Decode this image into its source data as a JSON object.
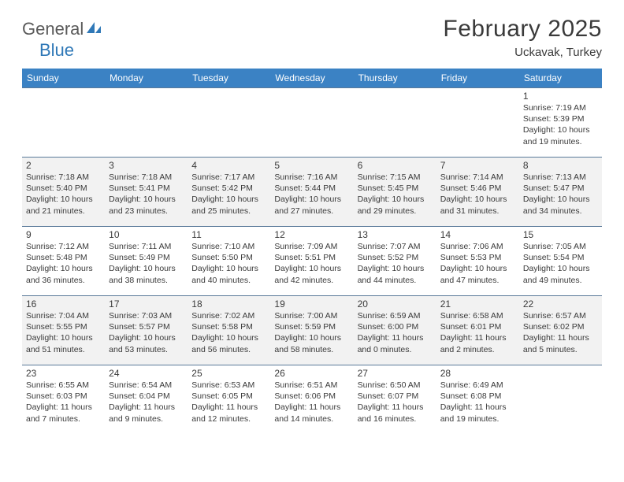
{
  "logo": {
    "word1": "General",
    "word2": "Blue"
  },
  "title": "February 2025",
  "location": "Uckavak, Turkey",
  "header_bg": "#3b82c4",
  "days_of_week": [
    "Sunday",
    "Monday",
    "Tuesday",
    "Wednesday",
    "Thursday",
    "Friday",
    "Saturday"
  ],
  "weeks": [
    [
      null,
      null,
      null,
      null,
      null,
      null,
      {
        "n": "1",
        "sr": "Sunrise: 7:19 AM",
        "ss": "Sunset: 5:39 PM",
        "dl": "Daylight: 10 hours and 19 minutes."
      }
    ],
    [
      {
        "n": "2",
        "sr": "Sunrise: 7:18 AM",
        "ss": "Sunset: 5:40 PM",
        "dl": "Daylight: 10 hours and 21 minutes."
      },
      {
        "n": "3",
        "sr": "Sunrise: 7:18 AM",
        "ss": "Sunset: 5:41 PM",
        "dl": "Daylight: 10 hours and 23 minutes."
      },
      {
        "n": "4",
        "sr": "Sunrise: 7:17 AM",
        "ss": "Sunset: 5:42 PM",
        "dl": "Daylight: 10 hours and 25 minutes."
      },
      {
        "n": "5",
        "sr": "Sunrise: 7:16 AM",
        "ss": "Sunset: 5:44 PM",
        "dl": "Daylight: 10 hours and 27 minutes."
      },
      {
        "n": "6",
        "sr": "Sunrise: 7:15 AM",
        "ss": "Sunset: 5:45 PM",
        "dl": "Daylight: 10 hours and 29 minutes."
      },
      {
        "n": "7",
        "sr": "Sunrise: 7:14 AM",
        "ss": "Sunset: 5:46 PM",
        "dl": "Daylight: 10 hours and 31 minutes."
      },
      {
        "n": "8",
        "sr": "Sunrise: 7:13 AM",
        "ss": "Sunset: 5:47 PM",
        "dl": "Daylight: 10 hours and 34 minutes."
      }
    ],
    [
      {
        "n": "9",
        "sr": "Sunrise: 7:12 AM",
        "ss": "Sunset: 5:48 PM",
        "dl": "Daylight: 10 hours and 36 minutes."
      },
      {
        "n": "10",
        "sr": "Sunrise: 7:11 AM",
        "ss": "Sunset: 5:49 PM",
        "dl": "Daylight: 10 hours and 38 minutes."
      },
      {
        "n": "11",
        "sr": "Sunrise: 7:10 AM",
        "ss": "Sunset: 5:50 PM",
        "dl": "Daylight: 10 hours and 40 minutes."
      },
      {
        "n": "12",
        "sr": "Sunrise: 7:09 AM",
        "ss": "Sunset: 5:51 PM",
        "dl": "Daylight: 10 hours and 42 minutes."
      },
      {
        "n": "13",
        "sr": "Sunrise: 7:07 AM",
        "ss": "Sunset: 5:52 PM",
        "dl": "Daylight: 10 hours and 44 minutes."
      },
      {
        "n": "14",
        "sr": "Sunrise: 7:06 AM",
        "ss": "Sunset: 5:53 PM",
        "dl": "Daylight: 10 hours and 47 minutes."
      },
      {
        "n": "15",
        "sr": "Sunrise: 7:05 AM",
        "ss": "Sunset: 5:54 PM",
        "dl": "Daylight: 10 hours and 49 minutes."
      }
    ],
    [
      {
        "n": "16",
        "sr": "Sunrise: 7:04 AM",
        "ss": "Sunset: 5:55 PM",
        "dl": "Daylight: 10 hours and 51 minutes."
      },
      {
        "n": "17",
        "sr": "Sunrise: 7:03 AM",
        "ss": "Sunset: 5:57 PM",
        "dl": "Daylight: 10 hours and 53 minutes."
      },
      {
        "n": "18",
        "sr": "Sunrise: 7:02 AM",
        "ss": "Sunset: 5:58 PM",
        "dl": "Daylight: 10 hours and 56 minutes."
      },
      {
        "n": "19",
        "sr": "Sunrise: 7:00 AM",
        "ss": "Sunset: 5:59 PM",
        "dl": "Daylight: 10 hours and 58 minutes."
      },
      {
        "n": "20",
        "sr": "Sunrise: 6:59 AM",
        "ss": "Sunset: 6:00 PM",
        "dl": "Daylight: 11 hours and 0 minutes."
      },
      {
        "n": "21",
        "sr": "Sunrise: 6:58 AM",
        "ss": "Sunset: 6:01 PM",
        "dl": "Daylight: 11 hours and 2 minutes."
      },
      {
        "n": "22",
        "sr": "Sunrise: 6:57 AM",
        "ss": "Sunset: 6:02 PM",
        "dl": "Daylight: 11 hours and 5 minutes."
      }
    ],
    [
      {
        "n": "23",
        "sr": "Sunrise: 6:55 AM",
        "ss": "Sunset: 6:03 PM",
        "dl": "Daylight: 11 hours and 7 minutes."
      },
      {
        "n": "24",
        "sr": "Sunrise: 6:54 AM",
        "ss": "Sunset: 6:04 PM",
        "dl": "Daylight: 11 hours and 9 minutes."
      },
      {
        "n": "25",
        "sr": "Sunrise: 6:53 AM",
        "ss": "Sunset: 6:05 PM",
        "dl": "Daylight: 11 hours and 12 minutes."
      },
      {
        "n": "26",
        "sr": "Sunrise: 6:51 AM",
        "ss": "Sunset: 6:06 PM",
        "dl": "Daylight: 11 hours and 14 minutes."
      },
      {
        "n": "27",
        "sr": "Sunrise: 6:50 AM",
        "ss": "Sunset: 6:07 PM",
        "dl": "Daylight: 11 hours and 16 minutes."
      },
      {
        "n": "28",
        "sr": "Sunrise: 6:49 AM",
        "ss": "Sunset: 6:08 PM",
        "dl": "Daylight: 11 hours and 19 minutes."
      },
      null
    ]
  ]
}
